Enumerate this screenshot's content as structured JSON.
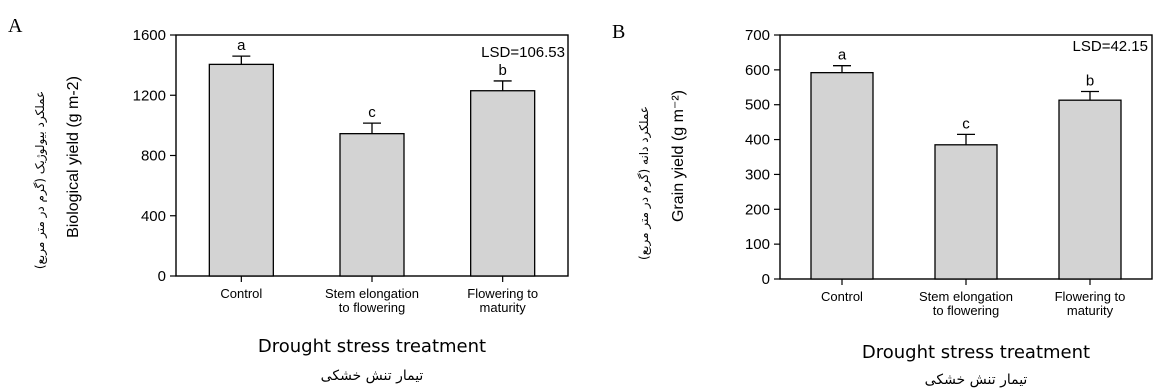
{
  "chart_data": [
    {
      "type": "bar",
      "panel_label": "A",
      "categories": [
        "Control",
        "Stem elongation\nto flowering",
        "Flowering to\nmaturity"
      ],
      "values": [
        1405,
        945,
        1230
      ],
      "errors": [
        55,
        70,
        65
      ],
      "significance_letters": [
        "a",
        "c",
        "b"
      ],
      "annotation": "LSD=106.53",
      "ylabel": "Biological yield (g m-2)",
      "ylabel_secondary": "عملکرد بیولوژیک (گرم در متر مربع)",
      "xlabel": "Drought stress treatment",
      "xlabel_secondary": "تیمار تنش خشکی",
      "yticks": [
        0,
        400,
        800,
        1200,
        1600
      ],
      "ylim": [
        0,
        1600
      ],
      "bar_color": "#d3d3d3",
      "grid": false
    },
    {
      "type": "bar",
      "panel_label": "B",
      "categories": [
        "Control",
        "Stem elongation\nto flowering",
        "Flowering to\nmaturity"
      ],
      "values": [
        592,
        385,
        513
      ],
      "errors": [
        20,
        30,
        25
      ],
      "significance_letters": [
        "a",
        "c",
        "b"
      ],
      "annotation": "LSD=42.15",
      "ylabel": "Grain yield (g m⁻²)",
      "ylabel_secondary": "عملکرد دانه (گرم در متر مربع)",
      "xlabel": "Drought stress treatment",
      "xlabel_secondary": "تیمار تنش خشکی",
      "yticks": [
        0,
        100,
        200,
        300,
        400,
        500,
        600,
        700
      ],
      "ylim": [
        0,
        700
      ],
      "bar_color": "#d3d3d3",
      "grid": false
    }
  ]
}
